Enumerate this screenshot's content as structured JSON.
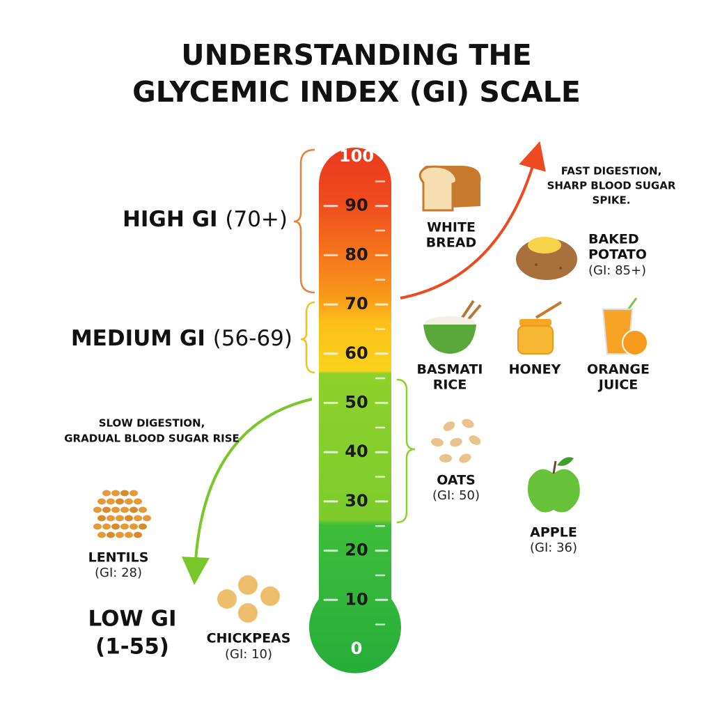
{
  "title": [
    "UNDERSTANDING THE",
    "GLYCEMIC INDEX (GI) SCALE"
  ],
  "scale": {
    "ticks": [
      100,
      90,
      80,
      70,
      60,
      50,
      40,
      30,
      20,
      10,
      0
    ]
  },
  "ranges": {
    "high": {
      "name": "HIGH GI",
      "range": "(70+)"
    },
    "medium": {
      "name": "MEDIUM GI",
      "range": "(56-69)"
    },
    "low": {
      "name": "LOW GI",
      "range": "(1-55)"
    }
  },
  "notes": {
    "fast": [
      "FAST DIGESTION,",
      "SHARP BLOOD SUGAR",
      "SPIKE."
    ],
    "slow": [
      "SLOW DIGESTION,",
      "GRADUAL BLOOD SUGAR RISE"
    ]
  },
  "foods": {
    "white_bread": {
      "name": [
        "WHITE",
        "BREAD"
      ]
    },
    "baked_potato": {
      "name": [
        "BAKED",
        "POTATO"
      ],
      "gi": "(GI: 85+)"
    },
    "basmati_rice": {
      "name": [
        "BASMATI",
        "RICE"
      ]
    },
    "honey": {
      "name": [
        "HONEY"
      ]
    },
    "orange_juice": {
      "name": [
        "ORANGE",
        "JUICE"
      ]
    },
    "oats": {
      "name": [
        "OATS"
      ],
      "gi": "(GI: 50)"
    },
    "apple": {
      "name": [
        "APPLE"
      ],
      "gi": "(GI: 36)"
    },
    "lentils": {
      "name": [
        "LENTILS"
      ],
      "gi": "(GI: 28)"
    },
    "chickpeas": {
      "name": [
        "CHICKPEAS"
      ],
      "gi": "(GI: 10)"
    }
  }
}
